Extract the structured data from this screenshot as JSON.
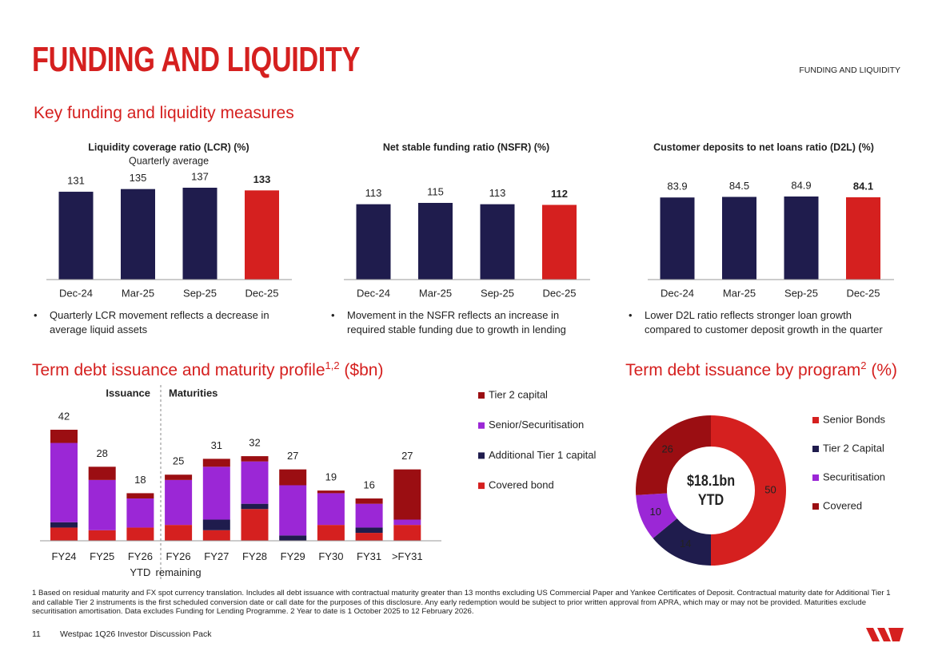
{
  "header": {
    "title": "FUNDING AND LIQUIDITY",
    "section_tag": "FUNDING AND LIQUIDITY"
  },
  "section_title": "Key funding and liquidity measures",
  "chart_data": [
    {
      "type": "bar",
      "title": "Liquidity coverage ratio (LCR) (%)",
      "subtitle": "Quarterly average",
      "categories": [
        "Dec-24",
        "Mar-25",
        "Sep-25",
        "Dec-25"
      ],
      "values": [
        131,
        135,
        137,
        133
      ],
      "colors": [
        "#1f1c4d",
        "#1f1c4d",
        "#1f1c4d",
        "#d5201f"
      ],
      "note": "Quarterly LCR movement reflects a decrease in average liquid assets"
    },
    {
      "type": "bar",
      "title": "Net stable funding ratio (NSFR) (%)",
      "categories": [
        "Dec-24",
        "Mar-25",
        "Sep-25",
        "Dec-25"
      ],
      "values": [
        113,
        115,
        113,
        112
      ],
      "colors": [
        "#1f1c4d",
        "#1f1c4d",
        "#1f1c4d",
        "#d5201f"
      ],
      "note": "Movement in the NSFR reflects an increase in required stable funding due to growth in lending"
    },
    {
      "type": "bar",
      "title": "Customer deposits to net loans ratio (D2L) (%)",
      "categories": [
        "Dec-24",
        "Mar-25",
        "Sep-25",
        "Dec-25"
      ],
      "values": [
        83.9,
        84.5,
        84.9,
        84.1
      ],
      "colors": [
        "#1f1c4d",
        "#1f1c4d",
        "#1f1c4d",
        "#d5201f"
      ],
      "note": "Lower D2L ratio reflects stronger loan growth compared to customer deposit growth in the quarter"
    },
    {
      "type": "stacked_bar",
      "title": "Term debt issuance and maturity profile",
      "title_sup": "1,2",
      "title_suffix": " ($bn)",
      "annotations": [
        "Issuance",
        "Maturities"
      ],
      "categories": [
        "FY24",
        "FY25",
        "FY26 YTD",
        "FY26 remaining",
        "FY27",
        "FY28",
        "FY29",
        "FY30",
        "FY31",
        ">FY31"
      ],
      "totals": [
        42,
        28,
        18,
        25,
        31,
        32,
        27,
        19,
        16,
        27
      ],
      "series": [
        {
          "name": "Covered bond",
          "color": "#d5201f",
          "values": [
            5,
            4,
            5,
            6,
            4,
            12,
            0,
            6,
            3,
            6
          ]
        },
        {
          "name": "Additional Tier 1 capital",
          "color": "#1f1c4d",
          "values": [
            2,
            0,
            0,
            0,
            4,
            2,
            2,
            0,
            2,
            0
          ]
        },
        {
          "name": "Senior/Securitisation",
          "color": "#9b27d6",
          "values": [
            30,
            19,
            11,
            17,
            20,
            16,
            19,
            12,
            9,
            2
          ]
        },
        {
          "name": "Tier 2 capital",
          "color": "#9b0e12",
          "values": [
            5,
            5,
            2,
            2,
            3,
            2,
            6,
            1,
            2,
            19
          ]
        }
      ]
    },
    {
      "type": "donut",
      "title": "Term debt issuance by program",
      "title_sup": "2",
      "title_suffix": " (%)",
      "categories": [
        "Senior Bonds",
        "Tier 2 Capital",
        "Securitisation",
        "Covered"
      ],
      "values": [
        50,
        14,
        10,
        26
      ],
      "colors": [
        "#d5201f",
        "#1f1c4d",
        "#9b27d6",
        "#9b0e12"
      ],
      "center_label": [
        "$18.1bn",
        "YTD"
      ]
    }
  ],
  "footnote": "1 Based on residual maturity and FX spot currency translation. Includes all debt issuance with contractual maturity greater than 13 months excluding US Commercial Paper and Yankee Certificates of Deposit. Contractual maturity date for Additional Tier 1 and callable Tier 2 instruments is the first scheduled conversion date or call date for the purposes of this disclosure. Any early redemption would be subject to prior written approval from APRA, which may or may not be provided.  Maturities exclude securitisation amortisation. Data excludes Funding for Lending Programme. 2 Year to date is 1 October 2025 to 12 February 2026.",
  "footer": {
    "page": "11",
    "text": "Westpac 1Q26 Investor Discussion Pack"
  }
}
